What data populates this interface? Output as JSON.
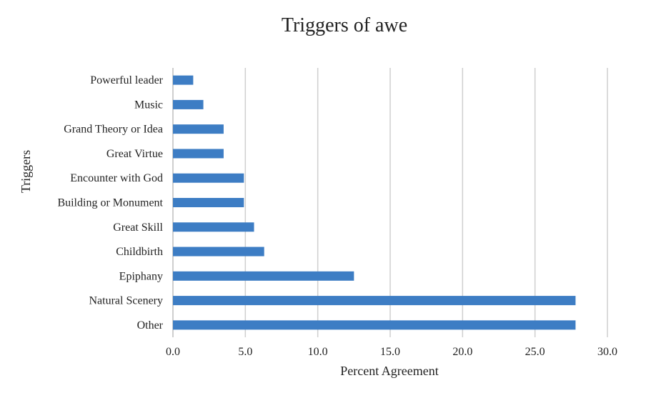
{
  "chart_data": {
    "type": "bar",
    "orientation": "horizontal",
    "title": "Triggers of awe",
    "xlabel": "Percent Agreement",
    "ylabel": "Triggers",
    "categories": [
      "Powerful leader",
      "Music",
      "Grand Theory or Idea",
      "Great Virtue",
      "Encounter with God",
      "Building or Monument",
      "Great Skill",
      "Childbirth",
      "Epiphany",
      "Natural Scenery",
      "Other"
    ],
    "values": [
      1.4,
      2.1,
      3.5,
      3.5,
      4.9,
      4.9,
      5.6,
      6.3,
      12.5,
      27.8,
      27.8
    ],
    "xlim": [
      0,
      30
    ],
    "xticks": [
      "0.0",
      "5.0",
      "10.0",
      "15.0",
      "20.0",
      "25.0",
      "30.0"
    ],
    "grid": "vertical",
    "legend": "none",
    "bar_color": "#3d7dc4"
  }
}
